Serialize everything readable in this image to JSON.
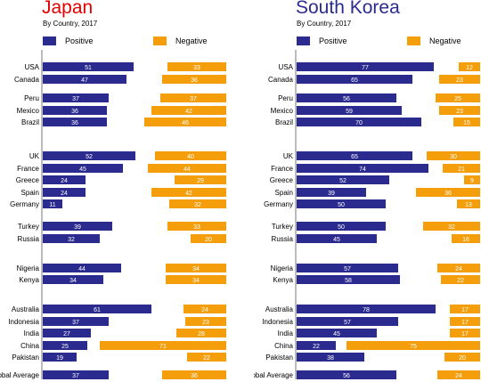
{
  "colors": {
    "positive": "#2b2a8f",
    "negative": "#f59e0b",
    "japan_title": "#e60000",
    "korea_title": "#2b2a8f",
    "axis": "#777777"
  },
  "legend": {
    "positive": "Positive",
    "negative": "Negative"
  },
  "chart_data": [
    {
      "type": "bar",
      "title": "Japan",
      "subtitle": "By Country, 2017",
      "categories": [
        "USA",
        "Canada",
        "Peru",
        "Mexico",
        "Brazil",
        "UK",
        "France",
        "Greece",
        "Spain",
        "Germany",
        "Turkey",
        "Russia",
        "Nigeria",
        "Kenya",
        "Australia",
        "Indonesia",
        "India",
        "China",
        "Pakistan",
        "Global Average"
      ],
      "series": [
        {
          "name": "Positive",
          "values": [
            51,
            47,
            37,
            36,
            36,
            52,
            45,
            24,
            24,
            11,
            39,
            32,
            44,
            34,
            61,
            37,
            27,
            25,
            19,
            37
          ]
        },
        {
          "name": "Negative",
          "values": [
            33,
            36,
            37,
            42,
            46,
            40,
            44,
            29,
            42,
            32,
            33,
            20,
            34,
            34,
            24,
            23,
            28,
            71,
            22,
            36
          ]
        }
      ],
      "legend_position": "top-left"
    },
    {
      "type": "bar",
      "title": "South Korea",
      "subtitle": "By Country, 2017",
      "categories": [
        "USA",
        "Canada",
        "Peru",
        "Mexico",
        "Brazil",
        "UK",
        "France",
        "Greece",
        "Spain",
        "Germany",
        "Turkey",
        "Russia",
        "Nigeria",
        "Kenya",
        "Australia",
        "Indonesia",
        "India",
        "China",
        "Pakistan",
        "Global Average"
      ],
      "series": [
        {
          "name": "Positive",
          "values": [
            77,
            65,
            56,
            59,
            70,
            65,
            74,
            52,
            39,
            50,
            50,
            45,
            57,
            58,
            78,
            57,
            45,
            22,
            38,
            56
          ]
        },
        {
          "name": "Negative",
          "values": [
            12,
            23,
            25,
            23,
            15,
            30,
            21,
            9,
            36,
            13,
            32,
            16,
            24,
            22,
            17,
            17,
            17,
            75,
            20,
            24
          ]
        }
      ],
      "legend_position": "top-left"
    }
  ]
}
